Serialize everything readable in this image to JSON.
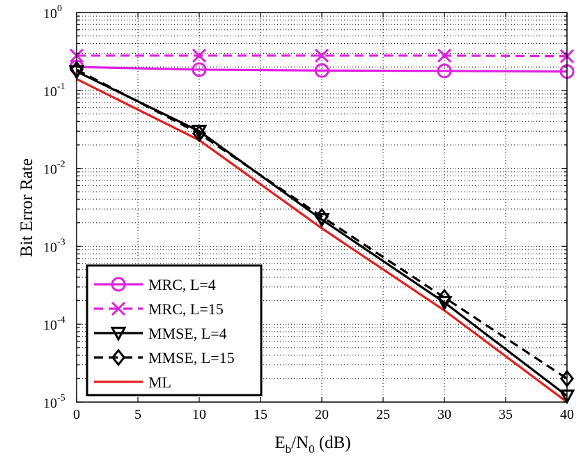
{
  "chart_data": {
    "type": "line",
    "title": "",
    "xlabel": {
      "main": "E",
      "sub1": "b",
      "mid": "/N",
      "sub2": "0",
      "tail": " (dB)"
    },
    "ylabel": "Bit Error Rate",
    "xscale": "linear",
    "yscale": "log",
    "xlim": [
      0,
      40
    ],
    "ylim": [
      1e-05,
      1
    ],
    "x_ticks": [
      0,
      5,
      10,
      15,
      20,
      25,
      30,
      35,
      40
    ],
    "x_tick_labels": [
      "0",
      "5",
      "10",
      "15",
      "20",
      "25",
      "30",
      "35",
      "40"
    ],
    "y_ticks": [
      {
        "exp": 0,
        "base": "10",
        "sup": "0"
      },
      {
        "exp": -1,
        "base": "10",
        "sup": "-1"
      },
      {
        "exp": -2,
        "base": "10",
        "sup": "-2"
      },
      {
        "exp": -3,
        "base": "10",
        "sup": "-3"
      },
      {
        "exp": -4,
        "base": "10",
        "sup": "-4"
      },
      {
        "exp": -5,
        "base": "10",
        "sup": "-5"
      }
    ],
    "grid": true,
    "legend_position": "bottom-left",
    "series": [
      {
        "name": "MRC, L=4",
        "color": "#e020e0",
        "dash": "solid",
        "marker": "circle",
        "x": [
          0,
          10,
          20,
          30,
          40
        ],
        "y": [
          0.2,
          0.185,
          0.18,
          0.178,
          0.175
        ]
      },
      {
        "name": "MRC, L=15",
        "color": "#e020e0",
        "dash": "dashed",
        "marker": "x",
        "x": [
          0,
          10,
          20,
          30,
          40
        ],
        "y": [
          0.28,
          0.28,
          0.28,
          0.28,
          0.275
        ]
      },
      {
        "name": "MMSE, L=4",
        "color": "#000000",
        "dash": "solid",
        "marker": "triangle-down",
        "x": [
          0,
          10,
          20,
          30,
          40
        ],
        "y": [
          0.175,
          0.03,
          0.0022,
          0.00019,
          1.2e-05
        ]
      },
      {
        "name": "MMSE, L=15",
        "color": "#000000",
        "dash": "dashed",
        "marker": "diamond",
        "x": [
          0,
          10,
          20,
          30,
          40
        ],
        "y": [
          0.185,
          0.028,
          0.0024,
          0.00022,
          2e-05
        ]
      },
      {
        "name": "ML",
        "color": "#e02020",
        "dash": "solid",
        "marker": "none",
        "x": [
          0,
          10,
          20,
          30,
          40
        ],
        "y": [
          0.14,
          0.023,
          0.0017,
          0.00015,
          1e-05
        ]
      }
    ]
  }
}
